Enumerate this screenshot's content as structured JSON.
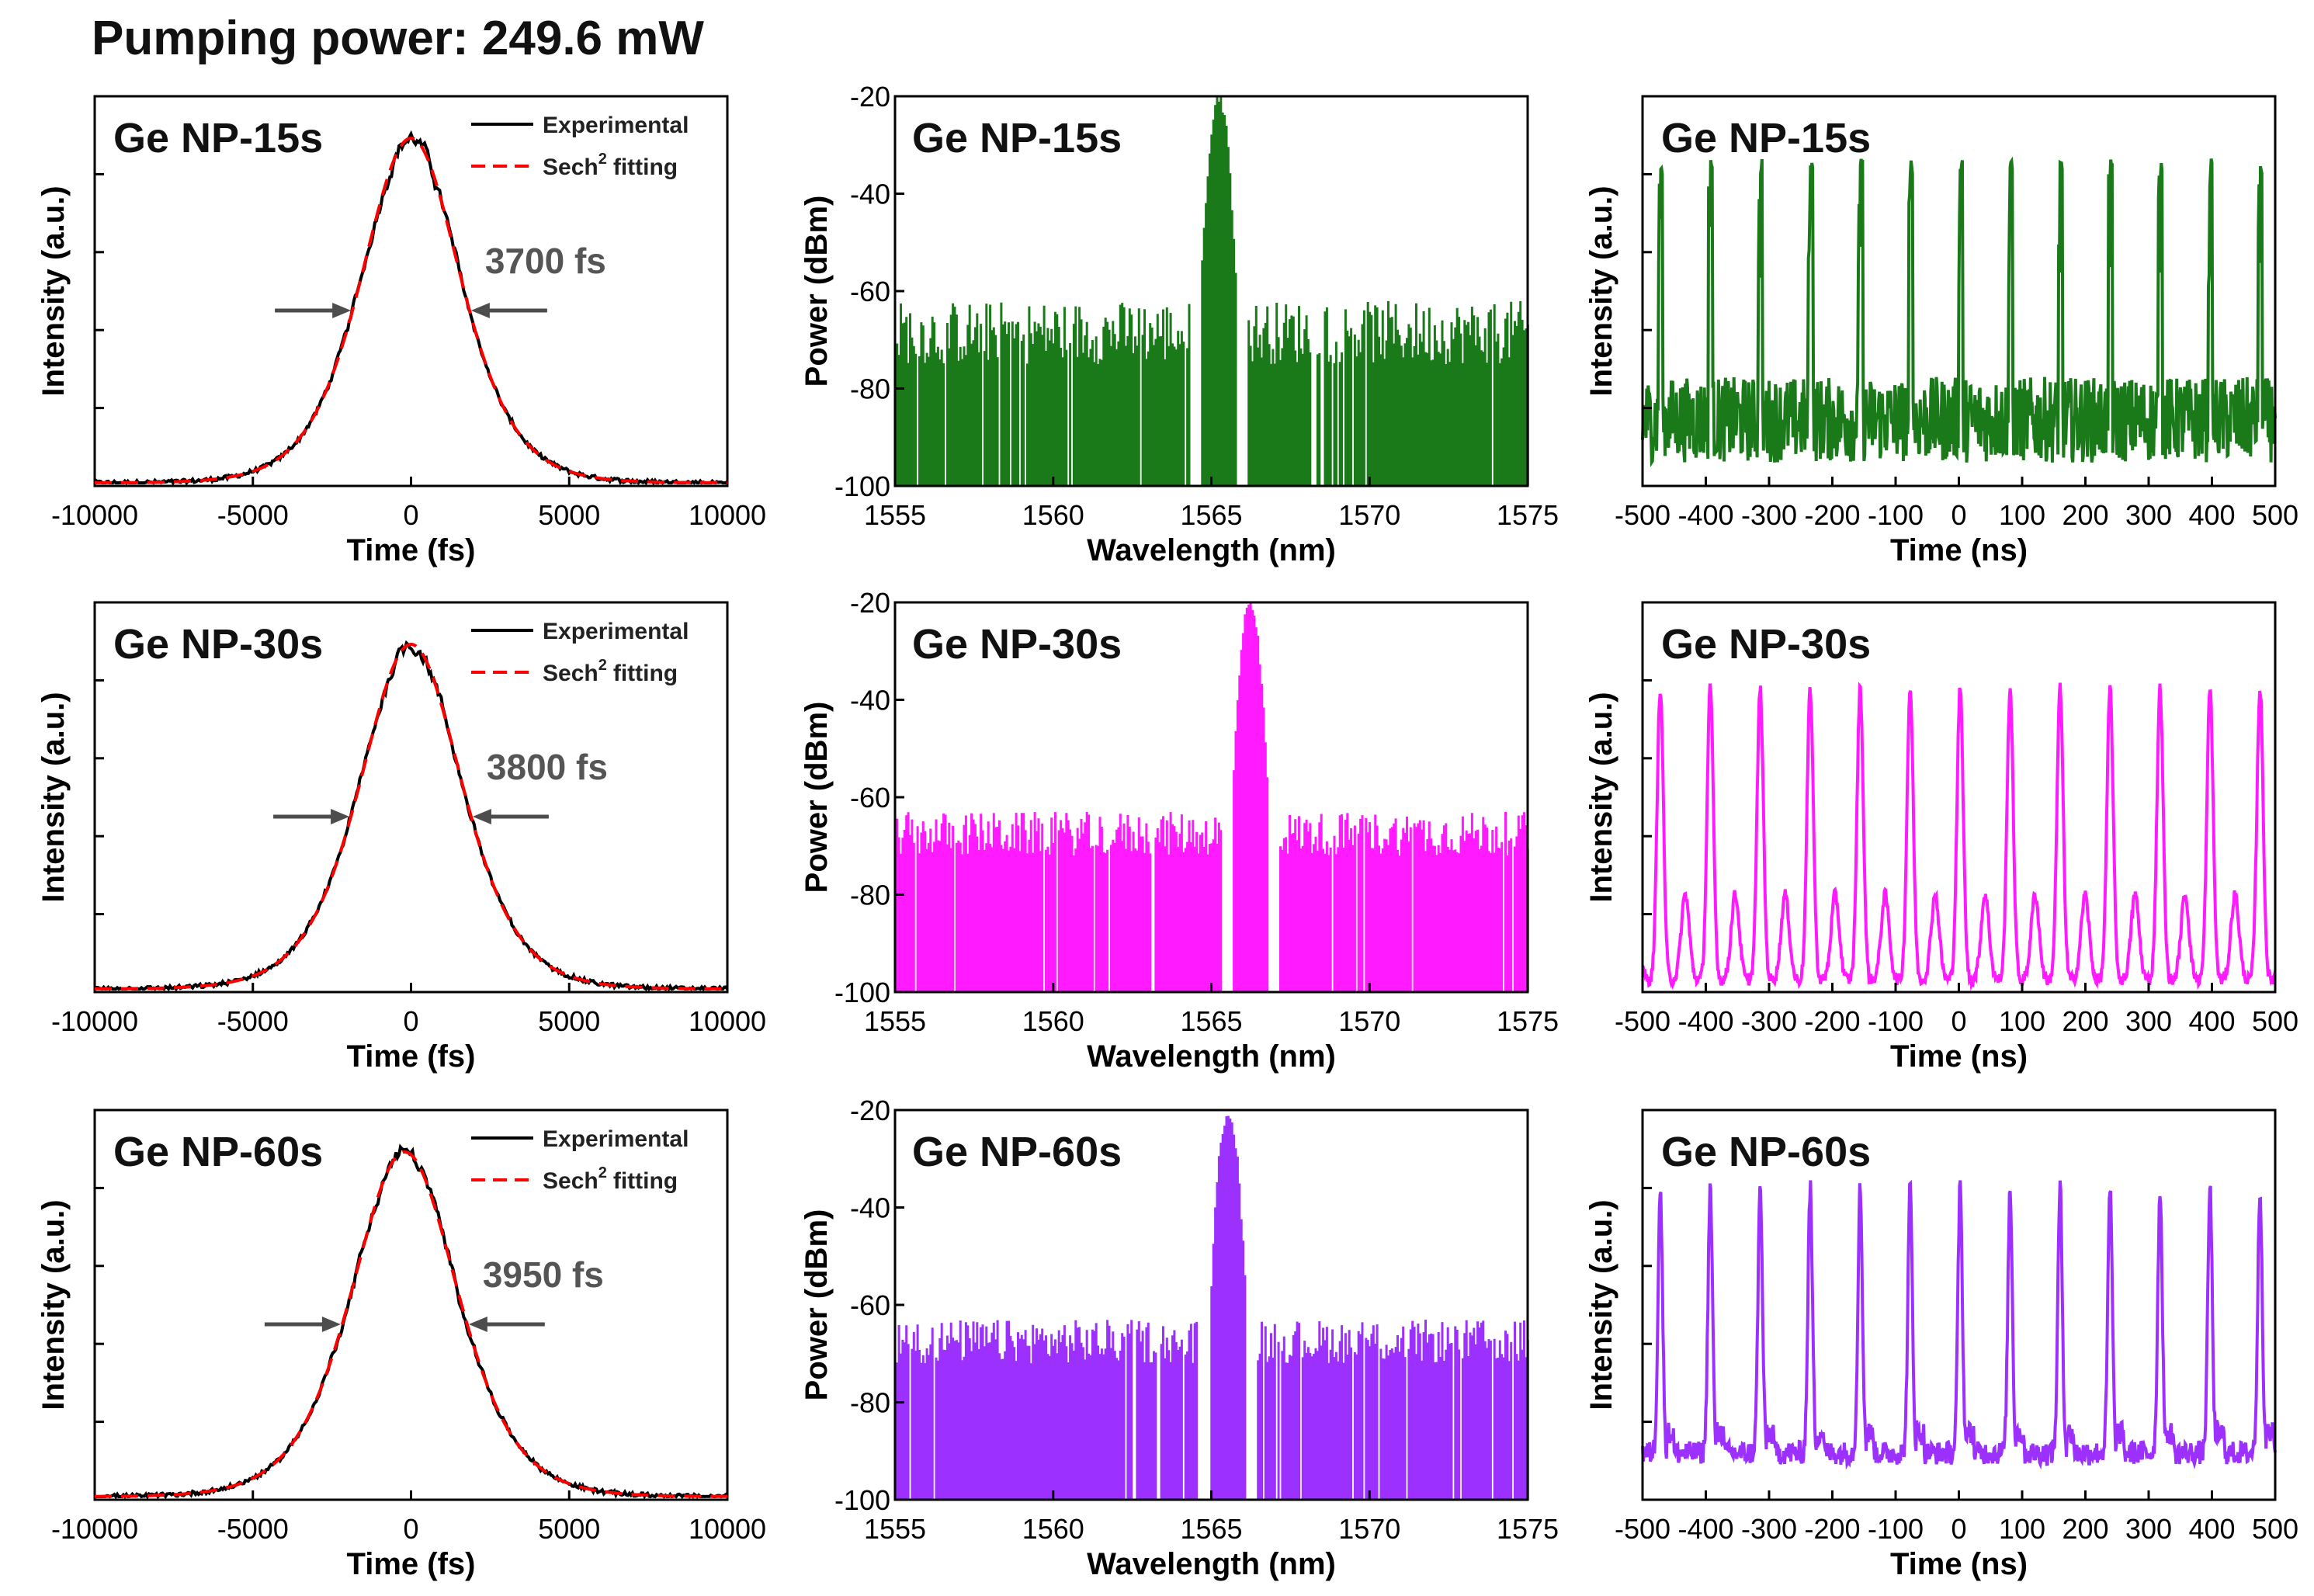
{
  "page_title": "Pumping power: 249.6 mW",
  "colors": {
    "row1": "#1a7a1a",
    "row2": "#ff1aff",
    "row3": "#9b30ff",
    "fit": "#ff0000",
    "exp": "#000000",
    "arrow": "#4d4d4d"
  },
  "chart_data": [
    {
      "id": "ac-15",
      "type": "line",
      "title": "Ge NP-15s",
      "xlabel": "Time (fs)",
      "ylabel": "Intensity (a.u.)",
      "xlim": [
        -10000,
        10000
      ],
      "xticks": [
        -10000,
        -5000,
        0,
        5000,
        10000
      ],
      "fwhm_label": "3700 fs",
      "fwhm_fs": 3700,
      "legend": [
        "Experimental",
        "Sech² fitting"
      ],
      "legend_experimental": "Experimental",
      "legend_fit_base": "Sech",
      "legend_fit_sup": "2",
      "legend_fit_tail": "fitting",
      "series": [
        {
          "name": "Experimental",
          "center": 0,
          "fwhm": 3700
        },
        {
          "name": "Sech² fitting",
          "center": 0,
          "fwhm": 3700
        }
      ]
    },
    {
      "id": "sp-15",
      "type": "area",
      "title": "Ge NP-15s",
      "xlabel": "Wavelength (nm)",
      "ylabel": "Power (dBm)",
      "xlim": [
        1555,
        1575
      ],
      "ylim": [
        -100,
        -20
      ],
      "xticks": [
        1555,
        1560,
        1565,
        1570,
        1575
      ],
      "yticks": [
        -100,
        -80,
        -60,
        -40,
        -20
      ],
      "peak_nm": 1565.2,
      "peak_dbm": -20,
      "noise_floor_dbm": [
        -75,
        -62
      ]
    },
    {
      "id": "pt-15",
      "type": "line",
      "title": "Ge NP-15s",
      "xlabel": "Time (ns)",
      "ylabel": "Intensity (a.u.)",
      "xlim": [
        -500,
        500
      ],
      "xticks": [
        -500,
        -400,
        -300,
        -200,
        -100,
        0,
        100,
        200,
        300,
        400,
        500
      ],
      "period_ns": 79,
      "pulse_count": 13
    },
    {
      "id": "ac-30",
      "type": "line",
      "title": "Ge NP-30s",
      "xlabel": "Time (fs)",
      "ylabel": "Intensity (a.u.)",
      "xlim": [
        -10000,
        10000
      ],
      "xticks": [
        -10000,
        -5000,
        0,
        5000,
        10000
      ],
      "fwhm_label": "3800 fs",
      "fwhm_fs": 3800,
      "legend": [
        "Experimental",
        "Sech² fitting"
      ],
      "legend_experimental": "Experimental",
      "legend_fit_base": "Sech",
      "legend_fit_sup": "2",
      "legend_fit_tail": "fitting",
      "series": [
        {
          "name": "Experimental",
          "center": 0,
          "fwhm": 3800
        },
        {
          "name": "Sech² fitting",
          "center": 0,
          "fwhm": 3800
        }
      ]
    },
    {
      "id": "sp-30",
      "type": "area",
      "title": "Ge NP-30s",
      "xlabel": "Wavelength (nm)",
      "ylabel": "Power (dBm)",
      "xlim": [
        1555,
        1575
      ],
      "ylim": [
        -100,
        -20
      ],
      "xticks": [
        1555,
        1560,
        1565,
        1570,
        1575
      ],
      "yticks": [
        -100,
        -80,
        -60,
        -40,
        -20
      ],
      "peak_nm": 1566.2,
      "peak_dbm": -20,
      "noise_floor_dbm": [
        -72,
        -63
      ]
    },
    {
      "id": "pt-30",
      "type": "line",
      "title": "Ge NP-30s",
      "xlabel": "Time (ns)",
      "ylabel": "Intensity (a.u.)",
      "xlim": [
        -500,
        500
      ],
      "xticks": [
        -500,
        -400,
        -300,
        -200,
        -100,
        0,
        100,
        200,
        300,
        400,
        500
      ],
      "period_ns": 79,
      "pulse_count": 13
    },
    {
      "id": "ac-60",
      "type": "line",
      "title": "Ge NP-60s",
      "xlabel": "Time (fs)",
      "ylabel": "Intensity (a.u.)",
      "xlim": [
        -10000,
        10000
      ],
      "xticks": [
        -10000,
        -5000,
        0,
        5000,
        10000
      ],
      "fwhm_label": "3950 fs",
      "fwhm_fs": 3950,
      "legend": [
        "Experimental",
        "Sech² fitting"
      ],
      "legend_experimental": "Experimental",
      "legend_fit_base": "Sech",
      "legend_fit_sup": "2",
      "legend_fit_tail": "fitting",
      "series": [
        {
          "name": "Experimental",
          "center": -200,
          "fwhm": 3950
        },
        {
          "name": "Sech² fitting",
          "center": -200,
          "fwhm": 3950
        }
      ]
    },
    {
      "id": "sp-60",
      "type": "area",
      "title": "Ge NP-60s",
      "xlabel": "Wavelength (nm)",
      "ylabel": "Power (dBm)",
      "xlim": [
        1555,
        1575
      ],
      "ylim": [
        -100,
        -20
      ],
      "xticks": [
        1555,
        1560,
        1565,
        1570,
        1575
      ],
      "yticks": [
        -100,
        -80,
        -60,
        -40,
        -20
      ],
      "peak_nm": 1565.5,
      "peak_dbm": -20,
      "noise_floor_dbm": [
        -72,
        -63
      ]
    },
    {
      "id": "pt-60",
      "type": "line",
      "title": "Ge NP-60s",
      "xlabel": "Time (ns)",
      "ylabel": "Intensity (a.u.)",
      "xlim": [
        -500,
        500
      ],
      "xticks": [
        -500,
        -400,
        -300,
        -200,
        -100,
        0,
        100,
        200,
        300,
        400,
        500
      ],
      "period_ns": 79,
      "pulse_count": 13
    }
  ]
}
